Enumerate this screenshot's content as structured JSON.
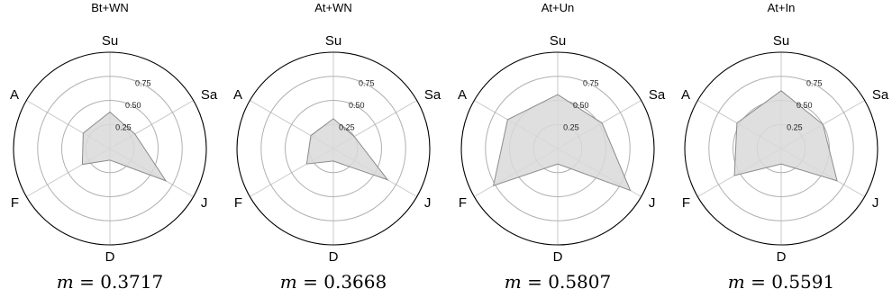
{
  "chart_data": [
    {
      "type": "radar",
      "title": "Bt+WN",
      "axes": [
        "Su",
        "Sa",
        "J",
        "D",
        "F",
        "A"
      ],
      "values": [
        0.38,
        0.3,
        0.67,
        0.12,
        0.33,
        0.32
      ],
      "rlim": [
        0,
        1
      ],
      "ticks": [
        0.25,
        0.5,
        0.75
      ],
      "tick_labels": [
        "0.25",
        "0.50",
        "0.75"
      ],
      "grid": true,
      "fill_color": "#d9d9d9",
      "line_color": "#8c8c8c",
      "caption_var": "m",
      "caption_value": "0.3717"
    },
    {
      "type": "radar",
      "title": "At+WN",
      "axes": [
        "Su",
        "Sa",
        "J",
        "D",
        "F",
        "A"
      ],
      "values": [
        0.31,
        0.25,
        0.65,
        0.13,
        0.32,
        0.27
      ],
      "rlim": [
        0,
        1
      ],
      "ticks": [
        0.25,
        0.5,
        0.75
      ],
      "tick_labels": [
        "0.25",
        "0.50",
        "0.75"
      ],
      "grid": true,
      "fill_color": "#d9d9d9",
      "line_color": "#8c8c8c",
      "caption_var": "m",
      "caption_value": "0.3668"
    },
    {
      "type": "radar",
      "title": "At+Un",
      "axes": [
        "Su",
        "Sa",
        "J",
        "D",
        "F",
        "A"
      ],
      "values": [
        0.56,
        0.53,
        0.87,
        0.16,
        0.77,
        0.6
      ],
      "rlim": [
        0,
        1
      ],
      "ticks": [
        0.25,
        0.5,
        0.75
      ],
      "tick_labels": [
        "0.25",
        "0.50",
        "0.75"
      ],
      "grid": true,
      "fill_color": "#d9d9d9",
      "line_color": "#8c8c8c",
      "caption_var": "m",
      "caption_value": "0.5807"
    },
    {
      "type": "radar",
      "title": "At+In",
      "axes": [
        "Su",
        "Sa",
        "J",
        "D",
        "F",
        "A"
      ],
      "values": [
        0.6,
        0.5,
        0.67,
        0.16,
        0.56,
        0.53
      ],
      "rlim": [
        0,
        1
      ],
      "ticks": [
        0.25,
        0.5,
        0.75
      ],
      "tick_labels": [
        "0.25",
        "0.50",
        "0.75"
      ],
      "grid": true,
      "fill_color": "#d9d9d9",
      "line_color": "#8c8c8c",
      "caption_var": "m",
      "caption_value": "0.5591"
    }
  ]
}
